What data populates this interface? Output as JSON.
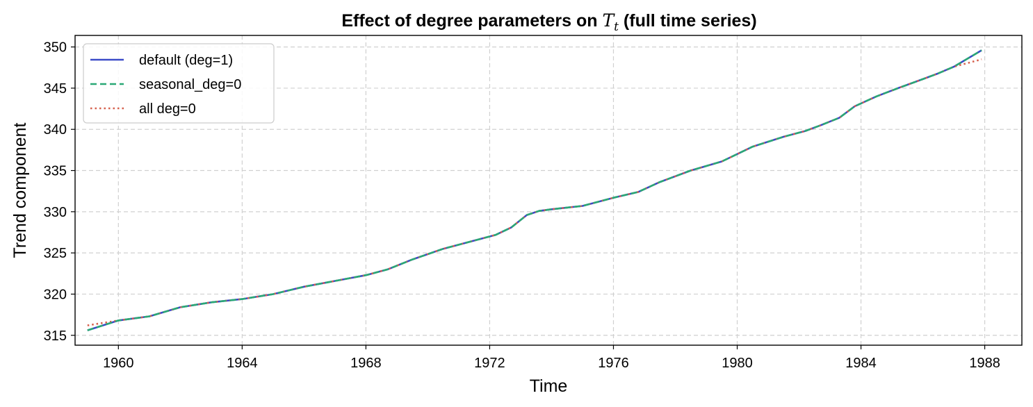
{
  "chart_data": {
    "type": "line",
    "title": "Effect of degree parameters on ",
    "title_math": "T",
    "title_math_sub": "t",
    "title_suffix": " (full time series)",
    "xlabel": "Time",
    "ylabel": "Trend component",
    "xlim": [
      1958.6,
      1989.2
    ],
    "ylim": [
      313.8,
      351.4
    ],
    "x_ticks": [
      1960,
      1964,
      1968,
      1972,
      1976,
      1980,
      1984,
      1988
    ],
    "y_ticks": [
      315,
      320,
      325,
      330,
      335,
      340,
      345,
      350
    ],
    "grid": true,
    "legend_position": "top-left",
    "x": [
      1959.0,
      1960.0,
      1961.0,
      1962.0,
      1963.0,
      1964.0,
      1965.0,
      1966.0,
      1967.0,
      1968.0,
      1968.7,
      1969.5,
      1970.5,
      1971.5,
      1972.2,
      1972.7,
      1973.2,
      1973.6,
      1974.0,
      1975.0,
      1976.0,
      1976.8,
      1977.5,
      1978.5,
      1979.5,
      1980.5,
      1981.5,
      1982.2,
      1982.7,
      1983.3,
      1983.8,
      1984.5,
      1985.2,
      1986.0,
      1986.5,
      1987.0,
      1987.9
    ],
    "series": [
      {
        "name": "default (deg=1)",
        "color": "#3b4bc8",
        "dash": "solid",
        "values": [
          315.6,
          316.8,
          317.3,
          318.4,
          319.0,
          319.4,
          320.0,
          320.9,
          321.6,
          322.3,
          323.0,
          324.2,
          325.5,
          326.5,
          327.2,
          328.1,
          329.6,
          330.1,
          330.3,
          330.7,
          331.7,
          332.4,
          333.6,
          335.0,
          336.1,
          337.9,
          339.1,
          339.8,
          340.5,
          341.4,
          342.8,
          344.0,
          345.0,
          346.1,
          346.8,
          347.6,
          349.6
        ]
      },
      {
        "name": "seasonal_deg=0",
        "color": "#2aa876",
        "dash": "dashed",
        "values": [
          315.6,
          316.8,
          317.3,
          318.4,
          319.0,
          319.4,
          320.0,
          320.9,
          321.6,
          322.3,
          323.0,
          324.2,
          325.5,
          326.5,
          327.2,
          328.1,
          329.6,
          330.1,
          330.3,
          330.7,
          331.7,
          332.4,
          333.6,
          335.0,
          336.1,
          337.9,
          339.1,
          339.8,
          340.5,
          341.4,
          342.8,
          344.0,
          345.0,
          346.1,
          346.8,
          347.6,
          349.6
        ]
      },
      {
        "name": "all deg=0",
        "color": "#d6604d",
        "dash": "dotted",
        "values": [
          316.2,
          316.8,
          317.3,
          318.4,
          319.0,
          319.4,
          320.0,
          320.9,
          321.6,
          322.3,
          323.0,
          324.2,
          325.5,
          326.5,
          327.2,
          328.1,
          329.6,
          330.1,
          330.3,
          330.7,
          331.7,
          332.4,
          333.6,
          335.0,
          336.1,
          337.9,
          339.1,
          339.8,
          340.5,
          341.4,
          342.8,
          344.0,
          345.0,
          346.1,
          346.8,
          347.6,
          348.5
        ]
      }
    ]
  }
}
